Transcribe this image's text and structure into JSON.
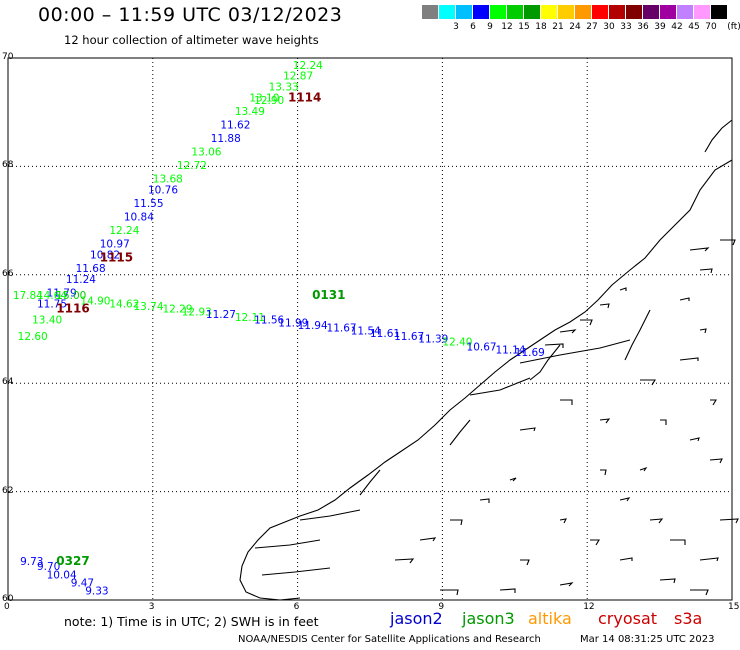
{
  "title": "00:00 – 11:59 UTC 03/12/2023",
  "subtitle": "12 hour collection of altimeter wave heights",
  "scale": {
    "unit_label": "(ft)",
    "bins": [
      {
        "label": "",
        "color": "#7f7f7f"
      },
      {
        "label": "3",
        "color": "#00ffff"
      },
      {
        "label": "6",
        "color": "#00bfff"
      },
      {
        "label": "9",
        "color": "#0000ff"
      },
      {
        "label": "12",
        "color": "#00ff00"
      },
      {
        "label": "15",
        "color": "#00cc00"
      },
      {
        "label": "18",
        "color": "#009900"
      },
      {
        "label": "21",
        "color": "#ffff00"
      },
      {
        "label": "24",
        "color": "#ffcc00"
      },
      {
        "label": "27",
        "color": "#ff9900"
      },
      {
        "label": "30",
        "color": "#ff0000"
      },
      {
        "label": "33",
        "color": "#b30000"
      },
      {
        "label": "36",
        "color": "#800000"
      },
      {
        "label": "39",
        "color": "#660066"
      },
      {
        "label": "42",
        "color": "#a000a0"
      },
      {
        "label": "45",
        "color": "#c080ff"
      },
      {
        "label": "70",
        "color": "#ff99ff"
      },
      {
        "label": "",
        "color": "#000000"
      }
    ]
  },
  "axes": {
    "lon_ticks": [
      "0",
      "3",
      "6",
      "9",
      "12",
      "15"
    ],
    "lat_ticks": [
      "70",
      "68",
      "66",
      "64",
      "62",
      "60"
    ]
  },
  "map_data": {
    "lon_range": [
      0,
      15
    ],
    "lat_range": [
      60,
      70
    ],
    "passes": [
      {
        "label": "1114",
        "lon": 5.8,
        "lat": 69.2,
        "color": "#800000"
      },
      {
        "label": "1115",
        "lon": 1.9,
        "lat": 66.25,
        "color": "#800000"
      },
      {
        "label": "1116",
        "lon": 1.0,
        "lat": 65.3,
        "color": "#800000"
      },
      {
        "label": "0131",
        "lon": 6.3,
        "lat": 65.55,
        "color": "#009900"
      },
      {
        "label": "0327",
        "lon": 1.0,
        "lat": 60.65,
        "color": "#009900"
      }
    ],
    "readings": [
      {
        "label": "12.24",
        "lon": 5.9,
        "lat": 69.8,
        "color": "#00ff00"
      },
      {
        "label": "12.87",
        "lon": 5.7,
        "lat": 69.6,
        "color": "#00ff00"
      },
      {
        "label": "13.33",
        "lon": 5.4,
        "lat": 69.4,
        "color": "#00ff00"
      },
      {
        "label": "13.10",
        "lon": 5.0,
        "lat": 69.2,
        "color": "#00ff00"
      },
      {
        "label": "12.90",
        "lon": 5.1,
        "lat": 69.15,
        "color": "#00ff00"
      },
      {
        "label": "13.49",
        "lon": 4.7,
        "lat": 68.95,
        "color": "#00ff00"
      },
      {
        "label": "11.62",
        "lon": 4.4,
        "lat": 68.7,
        "color": "#0000ff"
      },
      {
        "label": "11.88",
        "lon": 4.2,
        "lat": 68.45,
        "color": "#0000ff"
      },
      {
        "label": "13.06",
        "lon": 3.8,
        "lat": 68.2,
        "color": "#00ff00"
      },
      {
        "label": "12.72",
        "lon": 3.5,
        "lat": 67.95,
        "color": "#00ff00"
      },
      {
        "label": "13.68",
        "lon": 3.0,
        "lat": 67.7,
        "color": "#00ff00"
      },
      {
        "label": "10.76",
        "lon": 2.9,
        "lat": 67.5,
        "color": "#0000ff"
      },
      {
        "label": "11.55",
        "lon": 2.6,
        "lat": 67.25,
        "color": "#0000ff"
      },
      {
        "label": "10.84",
        "lon": 2.4,
        "lat": 67.0,
        "color": "#0000ff"
      },
      {
        "label": "12.24",
        "lon": 2.1,
        "lat": 66.75,
        "color": "#00ff00"
      },
      {
        "label": "10.97",
        "lon": 1.9,
        "lat": 66.5,
        "color": "#0000ff"
      },
      {
        "label": "10.82",
        "lon": 1.7,
        "lat": 66.3,
        "color": "#0000ff"
      },
      {
        "label": "11.68",
        "lon": 1.4,
        "lat": 66.05,
        "color": "#0000ff"
      },
      {
        "label": "11.24",
        "lon": 1.2,
        "lat": 65.85,
        "color": "#0000ff"
      },
      {
        "label": "11.79",
        "lon": 0.8,
        "lat": 65.6,
        "color": "#0000ff"
      },
      {
        "label": "17.84",
        "lon": 0.1,
        "lat": 65.55,
        "color": "#00ff00"
      },
      {
        "label": "14.64",
        "lon": 0.6,
        "lat": 65.55,
        "color": "#00ff00"
      },
      {
        "label": "15.00",
        "lon": 1.0,
        "lat": 65.55,
        "color": "#00cc00"
      },
      {
        "label": "11.75",
        "lon": 0.6,
        "lat": 65.4,
        "color": "#0000ff"
      },
      {
        "label": "13.40",
        "lon": 0.5,
        "lat": 65.1,
        "color": "#00ff00"
      },
      {
        "label": "12.60",
        "lon": 0.2,
        "lat": 64.8,
        "color": "#00ff00"
      },
      {
        "label": "14.90",
        "lon": 1.5,
        "lat": 65.45,
        "color": "#00ff00"
      },
      {
        "label": "14.62",
        "lon": 2.1,
        "lat": 65.4,
        "color": "#00ff00"
      },
      {
        "label": "13.74",
        "lon": 2.6,
        "lat": 65.35,
        "color": "#00ff00"
      },
      {
        "label": "12.29",
        "lon": 3.2,
        "lat": 65.3,
        "color": "#00ff00"
      },
      {
        "label": "12.93",
        "lon": 3.6,
        "lat": 65.25,
        "color": "#00ff00"
      },
      {
        "label": "11.27",
        "lon": 4.1,
        "lat": 65.2,
        "color": "#0000ff"
      },
      {
        "label": "12.11",
        "lon": 4.7,
        "lat": 65.15,
        "color": "#00ff00"
      },
      {
        "label": "11.56",
        "lon": 5.1,
        "lat": 65.1,
        "color": "#0000ff"
      },
      {
        "label": "11.99",
        "lon": 5.6,
        "lat": 65.05,
        "color": "#0000ff"
      },
      {
        "label": "11.94",
        "lon": 6.0,
        "lat": 65.0,
        "color": "#0000ff"
      },
      {
        "label": "11.67",
        "lon": 6.6,
        "lat": 64.95,
        "color": "#0000ff"
      },
      {
        "label": "11.54",
        "lon": 7.1,
        "lat": 64.9,
        "color": "#0000ff"
      },
      {
        "label": "11.61",
        "lon": 7.5,
        "lat": 64.85,
        "color": "#0000ff"
      },
      {
        "label": "11.67",
        "lon": 8.0,
        "lat": 64.8,
        "color": "#0000ff"
      },
      {
        "label": "11.39",
        "lon": 8.5,
        "lat": 64.75,
        "color": "#0000ff"
      },
      {
        "label": "12.40",
        "lon": 9.0,
        "lat": 64.7,
        "color": "#00ff00"
      },
      {
        "label": "10.67",
        "lon": 9.5,
        "lat": 64.6,
        "color": "#0000ff"
      },
      {
        "label": "11.14",
        "lon": 10.1,
        "lat": 64.55,
        "color": "#0000ff"
      },
      {
        "label": "11.69",
        "lon": 10.5,
        "lat": 64.5,
        "color": "#0000ff"
      },
      {
        "label": "9.73",
        "lon": 0.25,
        "lat": 60.65,
        "color": "#0000ff"
      },
      {
        "label": "9.70",
        "lon": 0.6,
        "lat": 60.55,
        "color": "#0000ff"
      },
      {
        "label": "10.04",
        "lon": 0.8,
        "lat": 60.4,
        "color": "#0000ff"
      },
      {
        "label": "9.47",
        "lon": 1.3,
        "lat": 60.25,
        "color": "#0000ff"
      },
      {
        "label": "9.33",
        "lon": 1.6,
        "lat": 60.1,
        "color": "#0000ff"
      }
    ]
  },
  "note": "note:  1) Time is in UTC;  2) SWH is in feet",
  "satellites": [
    {
      "name": "jason2",
      "color": "#0000cc"
    },
    {
      "name": "jason3",
      "color": "#009900"
    },
    {
      "name": "altika",
      "color": "#ff9900"
    },
    {
      "name": "cryosat",
      "color": "#cc0000"
    },
    {
      "name": "s3a",
      "color": "#cc0000"
    }
  ],
  "credit": "NOAA/NESDIS Center for Satellite Applications and Research",
  "timestamp": "Mar 14 08:31:25 UTC 2023"
}
